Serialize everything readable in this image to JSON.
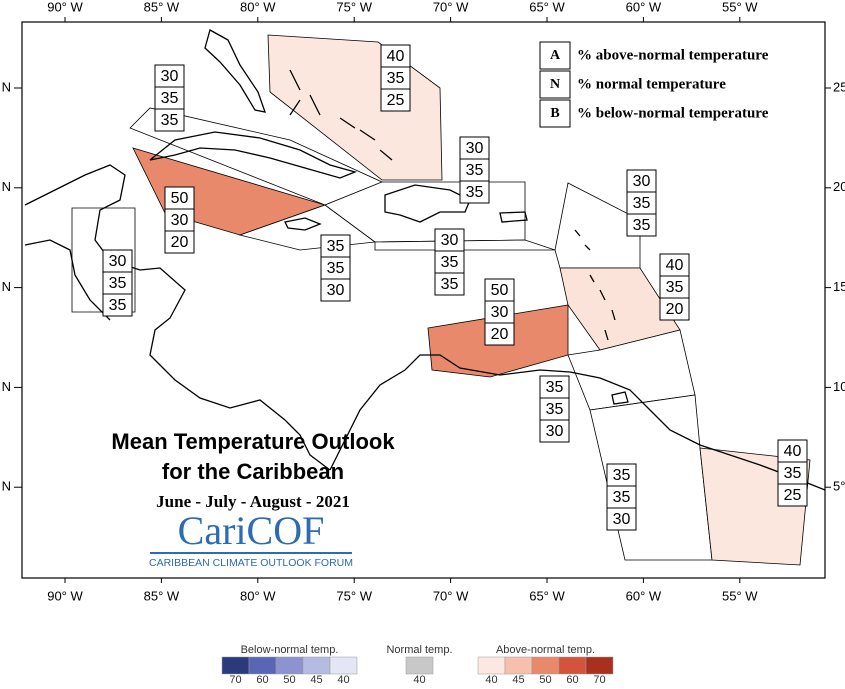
{
  "map": {
    "title_line1": "Mean Temperature Outlook",
    "title_line2": "for the Caribbean",
    "period": "June - July - August - 2021",
    "logo": "CariCOF",
    "logo_subtitle": "CARIBBEAN CLIMATE OUTLOOK FORUM",
    "lon_labels": [
      "90° W",
      "85° W",
      "80° W",
      "75° W",
      "70° W",
      "65° W",
      "60° W",
      "55° W"
    ],
    "lat_labels_left": [
      "N",
      "N",
      "N",
      "N",
      "N"
    ],
    "lat_labels_right": [
      "25",
      "20",
      "15",
      "10",
      "5°"
    ],
    "key": [
      {
        "letter": "A",
        "text": "% above-normal temperature"
      },
      {
        "letter": "N",
        "text": "% normal temperature"
      },
      {
        "letter": "B",
        "text": "% below-normal temperature"
      }
    ],
    "regions": [
      {
        "values": [
          40,
          35,
          25
        ],
        "color": "#fbe7de"
      },
      {
        "values": [
          30,
          35,
          35
        ],
        "color": "#ffffff"
      },
      {
        "values": [
          50,
          30,
          20
        ],
        "color": "#e8896b"
      },
      {
        "values": [
          30,
          35,
          35
        ],
        "color": "#ffffff"
      },
      {
        "values": [
          35,
          35,
          30
        ],
        "color": "#ffffff"
      },
      {
        "values": [
          30,
          35,
          35
        ],
        "color": "#ffffff"
      },
      {
        "values": [
          30,
          35,
          35
        ],
        "color": "#ffffff"
      },
      {
        "values": [
          30,
          35,
          35
        ],
        "color": "#ffffff"
      },
      {
        "values": [
          40,
          35,
          20
        ],
        "color": "#fce3d9"
      },
      {
        "values": [
          50,
          30,
          20
        ],
        "color": "#e8896b"
      },
      {
        "values": [
          35,
          35,
          30
        ],
        "color": "#ffffff"
      },
      {
        "values": [
          35,
          35,
          30
        ],
        "color": "#ffffff"
      },
      {
        "values": [
          40,
          35,
          25
        ],
        "color": "#fbe7de"
      }
    ],
    "colorbar": [
      {
        "title": "Below-normal temp.",
        "ticks": [
          70,
          60,
          50,
          45,
          40
        ],
        "colors": [
          "#2b3a7a",
          "#5866b5",
          "#8c93cf",
          "#b6bbe2",
          "#e3e6f4"
        ]
      },
      {
        "title": "Normal temp.",
        "ticks": [
          40
        ],
        "colors": [
          "#c8c8c8"
        ]
      },
      {
        "title": "Above-normal temp.",
        "ticks": [
          40,
          45,
          50,
          60,
          70
        ],
        "colors": [
          "#fce8e0",
          "#f6c0ac",
          "#e8896b",
          "#d3533d",
          "#a9301f"
        ]
      }
    ]
  }
}
